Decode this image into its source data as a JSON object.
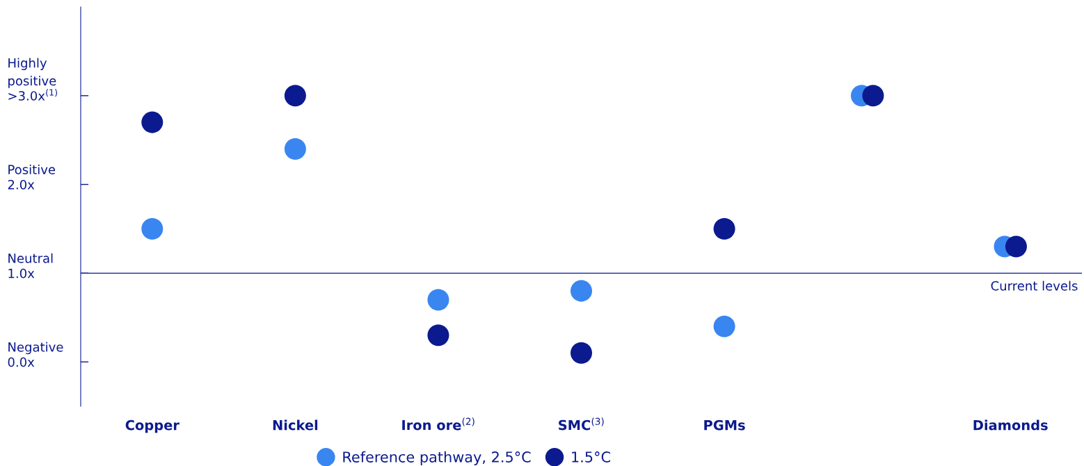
{
  "chart_data": {
    "type": "scatter",
    "categories": [
      "Copper",
      "Nickel",
      "Iron ore$^{(2)}$",
      "SMC$^{(3)}$",
      "PGMs",
      null,
      "Diamonds"
    ],
    "series": [
      {
        "name": "Reference pathway, 2.5°C",
        "color": "#3a86f0",
        "values": [
          1.5,
          2.4,
          0.7,
          0.8,
          0.4,
          3.0,
          1.3
        ]
      },
      {
        "name": "1.5°C",
        "color": "#0b1a8e",
        "values": [
          2.7,
          3.0,
          0.3,
          0.1,
          1.5,
          3.0,
          1.3
        ]
      }
    ],
    "ylim": [
      -0.5,
      4.0
    ],
    "yticks": [
      {
        "value": 0,
        "label": "0.0x"
      },
      {
        "value": 1,
        "label": "1.0x"
      },
      {
        "value": 2,
        "label": "2.0x"
      },
      {
        "value": 3,
        "label": ">3.0x$^{(1)}$"
      }
    ],
    "annotations": [
      "Negative",
      "Neutral",
      "Positive",
      "Highly\npositive"
    ],
    "ref_lines": [
      {
        "axis": "y",
        "value": 1,
        "label": "Current levels",
        "color": "#0b1a8e"
      }
    ],
    "legend": "bottom",
    "grid": false,
    "marker": "circle"
  }
}
